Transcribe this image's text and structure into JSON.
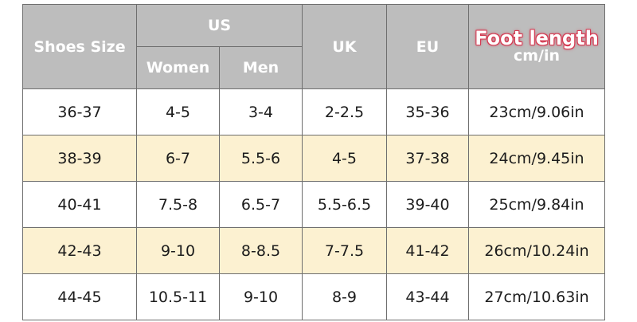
{
  "header": {
    "shoes_size": "Shoes Size",
    "us": "US",
    "women": "Women",
    "men": "Men",
    "uk": "UK",
    "eu": "EU",
    "foot_length": "Foot length",
    "foot_unit": "cm/in"
  },
  "colors": {
    "header_bg": "#bdbdbd",
    "alt_row_bg": "#fcf1d1",
    "foot_length_outline": "#d63a52"
  },
  "rows": [
    {
      "size": "36-37",
      "women": "4-5",
      "men": "3-4",
      "uk": "2-2.5",
      "eu": "35-36",
      "foot": "23cm/9.06in"
    },
    {
      "size": "38-39",
      "women": "6-7",
      "men": "5.5-6",
      "uk": "4-5",
      "eu": "37-38",
      "foot": "24cm/9.45in"
    },
    {
      "size": "40-41",
      "women": "7.5-8",
      "men": "6.5-7",
      "uk": "5.5-6.5",
      "eu": "39-40",
      "foot": "25cm/9.84in"
    },
    {
      "size": "42-43",
      "women": "9-10",
      "men": "8-8.5",
      "uk": "7-7.5",
      "eu": "41-42",
      "foot": "26cm/10.24in"
    },
    {
      "size": "44-45",
      "women": "10.5-11",
      "men": "9-10",
      "uk": "8-9",
      "eu": "43-44",
      "foot": "27cm/10.63in"
    }
  ]
}
